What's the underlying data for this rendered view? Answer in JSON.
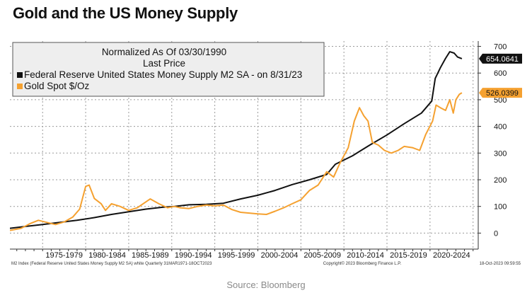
{
  "page": {
    "title": "Gold and the US Money Supply",
    "source": "Source: Bloomberg"
  },
  "colors": {
    "m2": "#111111",
    "gold": "#F5A130",
    "grid": "#9a9a9a"
  },
  "chart_data": {
    "type": "line",
    "legend": {
      "header_line1": "Normalized As Of 03/30/1990",
      "header_line2": "Last Price",
      "position": "top-left"
    },
    "ylim": [
      -60,
      720
    ],
    "yticks": [
      0,
      100,
      200,
      300,
      400,
      500,
      600,
      700
    ],
    "xlim": [
      1971.2,
      2025.6
    ],
    "x_tick_labels": [
      "1975-1979",
      "1980-1984",
      "1985-1989",
      "1990-1994",
      "1995-1999",
      "2000-2004",
      "2005-2009",
      "2010-2014",
      "2015-2019",
      "2020-2024"
    ],
    "x_label_centers": [
      1977.5,
      1982.5,
      1987.5,
      1992.5,
      1997.5,
      2002.5,
      2007.5,
      2012.5,
      2017.5,
      2022.5
    ],
    "x_separators": [
      1975,
      1980,
      1985,
      1990,
      1995,
      2000,
      2005,
      2010,
      2015,
      2020,
      2025
    ],
    "grid": true,
    "footer_left": "M2 Index (Federal Reserve United States Money Supply M2 SA) white  Quarterly 31MAR1971-18OCT2023",
    "footer_center": "Copyright© 2023 Bloomberg Finance L.P.",
    "footer_right": "18-Oct-2023 09:59:55",
    "series": [
      {
        "name": "Federal Reserve United States Money Supply M2 SA -  on 8/31/23",
        "color": "#111111",
        "last_value_label": "654.0641",
        "points": [
          [
            1971.2,
            18
          ],
          [
            1973,
            25
          ],
          [
            1975,
            32
          ],
          [
            1977,
            40
          ],
          [
            1979,
            48
          ],
          [
            1981,
            58
          ],
          [
            1983,
            70
          ],
          [
            1985,
            80
          ],
          [
            1987,
            90
          ],
          [
            1989,
            97
          ],
          [
            1990.3,
            100
          ],
          [
            1992,
            106
          ],
          [
            1994,
            108
          ],
          [
            1996,
            112
          ],
          [
            1998,
            128
          ],
          [
            2000,
            142
          ],
          [
            2002,
            160
          ],
          [
            2004,
            182
          ],
          [
            2006,
            200
          ],
          [
            2008,
            220
          ],
          [
            2009,
            258
          ],
          [
            2011,
            290
          ],
          [
            2013,
            330
          ],
          [
            2015,
            368
          ],
          [
            2017,
            410
          ],
          [
            2019,
            450
          ],
          [
            2020.2,
            495
          ],
          [
            2020.6,
            580
          ],
          [
            2021.2,
            620
          ],
          [
            2021.8,
            655
          ],
          [
            2022.3,
            680
          ],
          [
            2022.8,
            675
          ],
          [
            2023.2,
            660
          ],
          [
            2023.7,
            654
          ]
        ]
      },
      {
        "name": "Gold Spot $/Oz",
        "color": "#F5A130",
        "last_value_label": "526.0399",
        "points": [
          [
            1971.2,
            10
          ],
          [
            1972.5,
            18
          ],
          [
            1973.5,
            35
          ],
          [
            1974.5,
            48
          ],
          [
            1975.5,
            40
          ],
          [
            1976.5,
            32
          ],
          [
            1977.5,
            42
          ],
          [
            1978.5,
            60
          ],
          [
            1979.3,
            90
          ],
          [
            1980,
            175
          ],
          [
            1980.4,
            180
          ],
          [
            1981,
            130
          ],
          [
            1981.8,
            110
          ],
          [
            1982.3,
            85
          ],
          [
            1983,
            110
          ],
          [
            1984,
            100
          ],
          [
            1985,
            85
          ],
          [
            1986,
            95
          ],
          [
            1987.5,
            128
          ],
          [
            1988.5,
            110
          ],
          [
            1989.5,
            95
          ],
          [
            1990.3,
            100
          ],
          [
            1991,
            95
          ],
          [
            1992,
            92
          ],
          [
            1993,
            100
          ],
          [
            1994,
            105
          ],
          [
            1995,
            102
          ],
          [
            1996,
            105
          ],
          [
            1997,
            88
          ],
          [
            1998,
            78
          ],
          [
            1999,
            75
          ],
          [
            2000,
            72
          ],
          [
            2001,
            70
          ],
          [
            2002,
            82
          ],
          [
            2003,
            95
          ],
          [
            2004,
            110
          ],
          [
            2005,
            125
          ],
          [
            2006,
            160
          ],
          [
            2007,
            180
          ],
          [
            2008,
            230
          ],
          [
            2008.8,
            210
          ],
          [
            2009.5,
            260
          ],
          [
            2010.5,
            320
          ],
          [
            2011.2,
            420
          ],
          [
            2011.8,
            470
          ],
          [
            2012.3,
            440
          ],
          [
            2012.8,
            420
          ],
          [
            2013.3,
            340
          ],
          [
            2014,
            330
          ],
          [
            2014.7,
            310
          ],
          [
            2015.5,
            300
          ],
          [
            2016.3,
            310
          ],
          [
            2017,
            325
          ],
          [
            2018,
            320
          ],
          [
            2018.8,
            310
          ],
          [
            2019.5,
            370
          ],
          [
            2020.3,
            420
          ],
          [
            2020.7,
            480
          ],
          [
            2021.2,
            470
          ],
          [
            2021.8,
            460
          ],
          [
            2022.3,
            500
          ],
          [
            2022.7,
            450
          ],
          [
            2023,
            500
          ],
          [
            2023.4,
            520
          ],
          [
            2023.7,
            526
          ]
        ]
      }
    ]
  }
}
